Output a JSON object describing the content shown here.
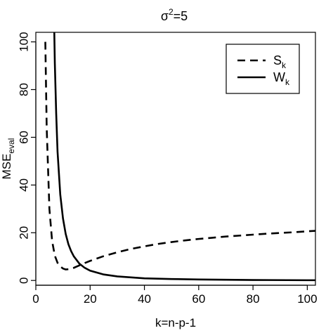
{
  "chart_data": {
    "type": "line",
    "title": {
      "base": "σ",
      "sup": "2",
      "rest": "=5"
    },
    "xlabel": "k=n-p-1",
    "ylabel": {
      "base": "MSE",
      "sub": "eval"
    },
    "xlim": [
      0,
      103
    ],
    "ylim": [
      -2,
      104
    ],
    "xticks": [
      0,
      20,
      40,
      60,
      80,
      100
    ],
    "yticks": [
      0,
      20,
      40,
      60,
      80,
      100
    ],
    "grid": false,
    "legend_position": "top-right",
    "series": [
      {
        "name": {
          "base": "S",
          "sub": "k"
        },
        "style": "dashed",
        "x": [
          3.5,
          4,
          5,
          6,
          7,
          8,
          9,
          10,
          11,
          12,
          14,
          16,
          18,
          20,
          25,
          30,
          35,
          40,
          45,
          50,
          55,
          60,
          65,
          70,
          75,
          80,
          85,
          90,
          95,
          100,
          103
        ],
        "y": [
          100,
          64,
          30,
          16.5,
          10.4,
          7.4,
          5.9,
          5.0,
          4.6,
          4.7,
          5.3,
          6.3,
          7.3,
          8.2,
          10.2,
          11.8,
          13.2,
          14.3,
          15.3,
          16.1,
          16.8,
          17.4,
          17.9,
          18.4,
          18.8,
          19.2,
          19.6,
          19.9,
          20.2,
          20.6,
          20.8
        ]
      },
      {
        "name": {
          "base": "W",
          "sub": "k"
        },
        "style": "solid",
        "x": [
          6.8,
          7,
          7.5,
          8,
          9,
          10,
          11,
          12,
          13,
          14,
          16,
          18,
          20,
          25,
          30,
          40,
          50,
          60,
          80,
          100,
          103
        ],
        "y": [
          104,
          91,
          70,
          54,
          36,
          26,
          19.5,
          15.2,
          12.3,
          10.1,
          7.1,
          5.3,
          4.1,
          2.5,
          1.7,
          0.9,
          0.6,
          0.4,
          0.2,
          0.1,
          0.1
        ]
      }
    ]
  }
}
